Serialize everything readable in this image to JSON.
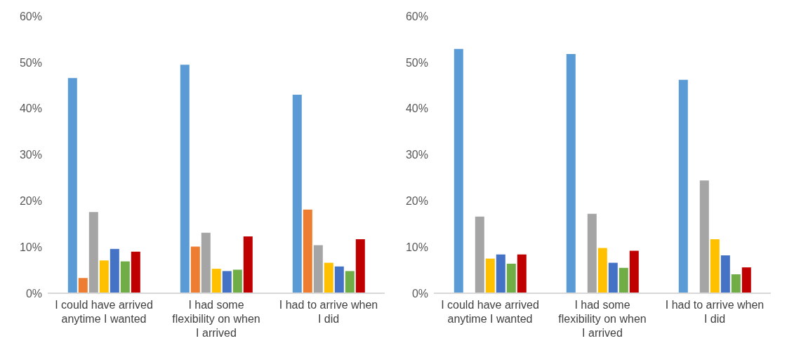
{
  "chart_data": [
    {
      "type": "bar",
      "categories": [
        "I could have arrived anytime I wanted",
        "I had some flexibility on when I arrived",
        "I had to arrive when I did"
      ],
      "series": [
        {
          "color": "#5b9bd5",
          "values": [
            46.6,
            49.5,
            43.0
          ]
        },
        {
          "color": "#ed7d31",
          "values": [
            3.3,
            10.1,
            18.1
          ]
        },
        {
          "color": "#a5a5a5",
          "values": [
            17.6,
            13.1,
            10.4
          ]
        },
        {
          "color": "#ffc000",
          "values": [
            7.1,
            5.3,
            6.6
          ]
        },
        {
          "color": "#4472c4",
          "values": [
            9.6,
            4.8,
            5.8
          ]
        },
        {
          "color": "#70ad47",
          "values": [
            6.9,
            5.1,
            4.8
          ]
        },
        {
          "color": "#c00000",
          "values": [
            9.0,
            12.3,
            11.7
          ]
        }
      ],
      "ylim": [
        0,
        60
      ],
      "yticks": [
        {
          "value": 0,
          "label": "0%"
        },
        {
          "value": 10,
          "label": "10%"
        },
        {
          "value": 20,
          "label": "20%"
        },
        {
          "value": 30,
          "label": "30%"
        },
        {
          "value": 40,
          "label": "40%"
        },
        {
          "value": 50,
          "label": "50%"
        },
        {
          "value": 60,
          "label": "60%"
        }
      ],
      "grid": false,
      "legend": false
    },
    {
      "type": "bar",
      "categories": [
        "I could have arrived anytime I wanted",
        "I had some flexibility on when I arrived",
        "I had to arrive when I did"
      ],
      "series": [
        {
          "color": "#5b9bd5",
          "values": [
            52.9,
            51.8,
            46.2
          ]
        },
        {
          "color": "#ed7d31",
          "values": [
            null,
            null,
            null
          ]
        },
        {
          "color": "#a5a5a5",
          "values": [
            16.6,
            17.2,
            24.4
          ]
        },
        {
          "color": "#ffc000",
          "values": [
            7.5,
            9.8,
            11.7
          ]
        },
        {
          "color": "#4472c4",
          "values": [
            8.4,
            6.6,
            8.2
          ]
        },
        {
          "color": "#70ad47",
          "values": [
            6.4,
            5.5,
            4.1
          ]
        },
        {
          "color": "#c00000",
          "values": [
            8.4,
            9.2,
            5.6
          ]
        }
      ],
      "ylim": [
        0,
        60
      ],
      "yticks": [
        {
          "value": 0,
          "label": "0%"
        },
        {
          "value": 10,
          "label": "10%"
        },
        {
          "value": 20,
          "label": "20%"
        },
        {
          "value": 30,
          "label": "30%"
        },
        {
          "value": 40,
          "label": "40%"
        },
        {
          "value": 50,
          "label": "50%"
        },
        {
          "value": 60,
          "label": "60%"
        }
      ],
      "grid": false,
      "legend": false
    }
  ]
}
